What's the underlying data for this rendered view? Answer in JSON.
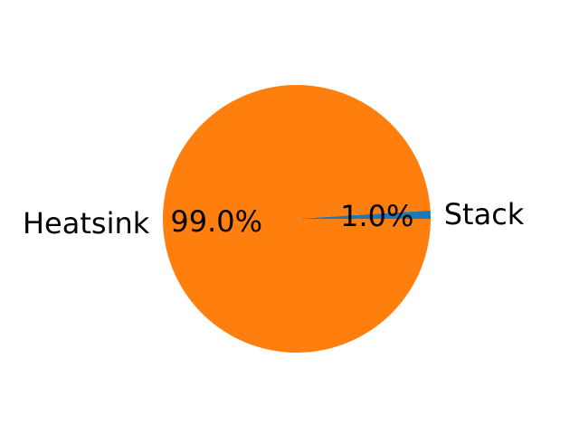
{
  "chart_data": {
    "type": "pie",
    "title": "",
    "slices": [
      {
        "label": "Stack",
        "value": 1.0,
        "pct_label": "1.0%",
        "color": "#1f77b4"
      },
      {
        "label": "Heatsink",
        "value": 99.0,
        "pct_label": "99.0%",
        "color": "#ff7f0e"
      }
    ],
    "start_angle_deg": 0,
    "direction": "counterclockwise",
    "legend": "none"
  }
}
